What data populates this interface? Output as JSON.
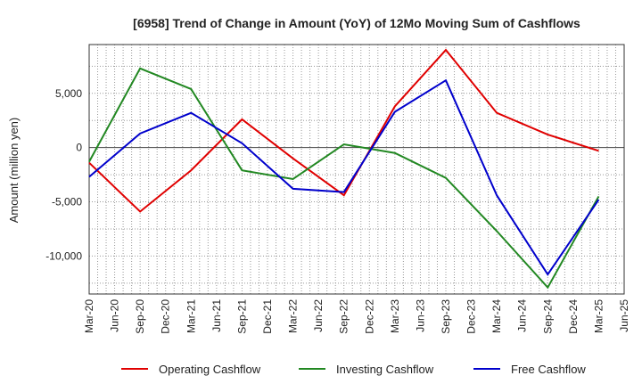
{
  "chart_data": {
    "type": "line",
    "title": "[6958]  Trend of Change in Amount (YoY) of 12Mo Moving Sum of Cashflows",
    "xlabel": "",
    "ylabel": "Amount (million yen)",
    "ylim": [
      -13500,
      9500
    ],
    "yticks": [
      5000,
      0,
      -5000,
      -10000
    ],
    "ytick_labels": [
      "5,000",
      "0",
      "-5,000",
      "-10,000"
    ],
    "categories": [
      "Mar-20",
      "Jun-20",
      "Sep-20",
      "Dec-20",
      "Mar-21",
      "Jun-21",
      "Sep-21",
      "Dec-21",
      "Mar-22",
      "Jun-22",
      "Sep-22",
      "Dec-22",
      "Mar-23",
      "Jun-23",
      "Sep-23",
      "Dec-23",
      "Mar-24",
      "Jun-24",
      "Sep-24",
      "Dec-24",
      "Mar-25",
      "Jun-25"
    ],
    "series": [
      {
        "name": "Operating Cashflow",
        "color": "#e00000",
        "points": [
          [
            0,
            -1400
          ],
          [
            2,
            -5900
          ],
          [
            4,
            -2100
          ],
          [
            6,
            2600
          ],
          [
            8,
            -1000
          ],
          [
            10,
            -4400
          ],
          [
            12,
            3800
          ],
          [
            14,
            9000
          ],
          [
            16,
            3200
          ],
          [
            18,
            1200
          ],
          [
            20,
            -300
          ]
        ]
      },
      {
        "name": "Investing Cashflow",
        "color": "#228822",
        "points": [
          [
            0,
            -1300
          ],
          [
            2,
            7300
          ],
          [
            4,
            5400
          ],
          [
            6,
            -2100
          ],
          [
            8,
            -2900
          ],
          [
            10,
            300
          ],
          [
            12,
            -500
          ],
          [
            14,
            -2800
          ],
          [
            16,
            -7700
          ],
          [
            18,
            -12900
          ],
          [
            20,
            -4500
          ]
        ]
      },
      {
        "name": "Free Cashflow",
        "color": "#0000cc",
        "points": [
          [
            0,
            -2700
          ],
          [
            2,
            1300
          ],
          [
            4,
            3200
          ],
          [
            6,
            400
          ],
          [
            8,
            -3800
          ],
          [
            10,
            -4100
          ],
          [
            12,
            3300
          ],
          [
            14,
            6200
          ],
          [
            16,
            -4400
          ],
          [
            18,
            -11700
          ],
          [
            20,
            -4800
          ]
        ]
      }
    ],
    "grid": true,
    "legend": "bottom"
  }
}
